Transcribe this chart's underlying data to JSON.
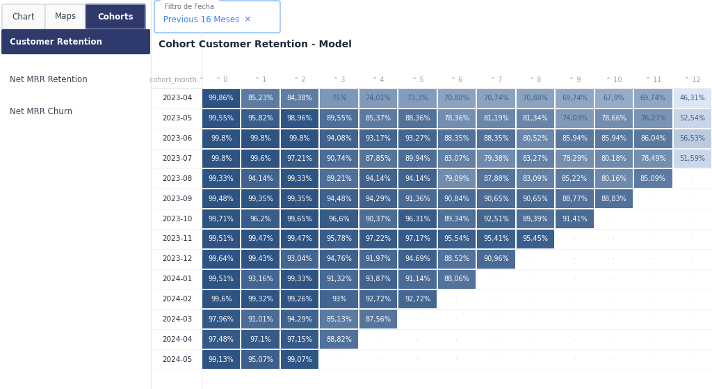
{
  "title": "Cohort Customer Retention - Model",
  "cohort_months": [
    "2023-04",
    "2023-05",
    "2023-06",
    "2023-07",
    "2023-08",
    "2023-09",
    "2023-10",
    "2023-11",
    "2023-12",
    "2024-01",
    "2024-02",
    "2024-03",
    "2024-04",
    "2024-05"
  ],
  "columns": [
    0,
    1,
    2,
    3,
    4,
    5,
    6,
    7,
    8,
    9,
    10,
    11,
    12
  ],
  "values": [
    [
      99.86,
      85.23,
      84.38,
      75.0,
      74.01,
      73.3,
      70.88,
      70.74,
      70.88,
      69.74,
      67.9,
      69.74,
      46.31
    ],
    [
      99.55,
      95.82,
      98.96,
      89.55,
      85.37,
      88.36,
      78.36,
      81.19,
      81.34,
      74.03,
      78.66,
      76.27,
      52.54
    ],
    [
      99.8,
      99.8,
      99.8,
      94.08,
      93.17,
      93.27,
      88.35,
      88.35,
      80.52,
      85.94,
      85.94,
      86.04,
      56.53
    ],
    [
      99.8,
      99.6,
      97.21,
      90.74,
      87.85,
      89.94,
      83.07,
      79.38,
      83.27,
      78.29,
      80.18,
      78.49,
      51.59
    ],
    [
      99.33,
      94.14,
      99.33,
      89.21,
      94.14,
      94.14,
      79.09,
      87.88,
      83.09,
      85.22,
      80.16,
      85.09,
      null
    ],
    [
      99.48,
      99.35,
      99.35,
      94.48,
      94.29,
      91.36,
      90.84,
      90.65,
      90.65,
      88.77,
      88.83,
      null,
      null
    ],
    [
      99.71,
      96.2,
      99.65,
      96.6,
      90.37,
      96.31,
      89.34,
      92.51,
      89.39,
      91.41,
      null,
      null,
      null
    ],
    [
      99.51,
      99.47,
      99.47,
      95.78,
      97.22,
      97.17,
      95.54,
      95.41,
      95.45,
      null,
      null,
      null,
      null
    ],
    [
      99.64,
      99.43,
      93.04,
      94.76,
      91.97,
      94.69,
      88.52,
      90.96,
      null,
      null,
      null,
      null,
      null
    ],
    [
      99.51,
      93.16,
      99.33,
      91.32,
      93.87,
      91.14,
      88.06,
      null,
      null,
      null,
      null,
      null,
      null
    ],
    [
      99.6,
      99.32,
      99.26,
      93.0,
      92.72,
      92.72,
      null,
      null,
      null,
      null,
      null,
      null,
      null
    ],
    [
      97.96,
      91.01,
      94.29,
      85.13,
      87.56,
      null,
      null,
      null,
      null,
      null,
      null,
      null,
      null
    ],
    [
      97.48,
      97.1,
      97.15,
      88.82,
      null,
      null,
      null,
      null,
      null,
      null,
      null,
      null,
      null
    ],
    [
      99.13,
      95.07,
      99.07,
      null,
      null,
      null,
      null,
      null,
      null,
      null,
      null,
      null,
      null
    ]
  ],
  "labels": [
    [
      "99,86%",
      "85,23%",
      "84,38%",
      "75%",
      "74,01%",
      "73,3%",
      "70,88%",
      "70,74%",
      "70,88%",
      "69,74%",
      "67,9%",
      "69,74%",
      "46,31%"
    ],
    [
      "99,55%",
      "95,82%",
      "98,96%",
      "89,55%",
      "85,37%",
      "88,36%",
      "78,36%",
      "81,19%",
      "81,34%",
      "74,03%",
      "78,66%",
      "76,27%",
      "52,54%"
    ],
    [
      "99,8%",
      "99,8%",
      "99,8%",
      "94,08%",
      "93,17%",
      "93,27%",
      "88,35%",
      "88,35%",
      "80,52%",
      "85,94%",
      "85,94%",
      "86,04%",
      "56,53%"
    ],
    [
      "99,8%",
      "99,6%",
      "97,21%",
      "90,74%",
      "87,85%",
      "89,94%",
      "83,07%",
      "79,38%",
      "83,27%",
      "78,29%",
      "80,18%",
      "78,49%",
      "51,59%"
    ],
    [
      "99,33%",
      "94,14%",
      "99,33%",
      "89,21%",
      "94,14%",
      "94,14%",
      "79,09%",
      "87,88%",
      "83,09%",
      "85,22%",
      "80,16%",
      "85,09%",
      "-"
    ],
    [
      "99,48%",
      "99,35%",
      "99,35%",
      "94,48%",
      "94,29%",
      "91,36%",
      "90,84%",
      "90,65%",
      "90,65%",
      "88,77%",
      "88,83%",
      "-",
      "-"
    ],
    [
      "99,71%",
      "96,2%",
      "99,65%",
      "96,6%",
      "90,37%",
      "96,31%",
      "89,34%",
      "92,51%",
      "89,39%",
      "91,41%",
      "-",
      "-",
      "-"
    ],
    [
      "99,51%",
      "99,47%",
      "99,47%",
      "95,78%",
      "97,22%",
      "97,17%",
      "95,54%",
      "95,41%",
      "95,45%",
      "-",
      "-",
      "-",
      "-"
    ],
    [
      "99,64%",
      "99,43%",
      "93,04%",
      "94,76%",
      "91,97%",
      "94,69%",
      "88,52%",
      "90,96%",
      "-",
      "-",
      "-",
      "-",
      "-"
    ],
    [
      "99,51%",
      "93,16%",
      "99,33%",
      "91,32%",
      "93,87%",
      "91,14%",
      "88,06%",
      "-",
      "-",
      "-",
      "-",
      "-",
      "-"
    ],
    [
      "99,6%",
      "99,32%",
      "99,26%",
      "93%",
      "92,72%",
      "92,72%",
      "-",
      "-",
      "-",
      "-",
      "-",
      "-",
      "-"
    ],
    [
      "97,96%",
      "91,01%",
      "94,29%",
      "85,13%",
      "87,56%",
      "-",
      "-",
      "-",
      "-",
      "-",
      "-",
      "-",
      "-"
    ],
    [
      "97,48%",
      "97,1%",
      "97,15%",
      "88,82%",
      "-",
      "-",
      "-",
      "-",
      "-",
      "-",
      "-",
      "-",
      "-"
    ],
    [
      "99,13%",
      "95,07%",
      "99,07%",
      "-",
      "-",
      "-",
      "-",
      "-",
      "-",
      "-",
      "-",
      "-",
      "-"
    ]
  ],
  "color_low": "#dce8f7",
  "color_mid": "#8aadd4",
  "color_high": "#2c5282",
  "color_null_bg": "#ffffff",
  "color_null_dot": "#bbbbbb",
  "background_color": "#ffffff",
  "nav_active_color": "#2d3a6b",
  "nav_active_border": "#8a94b8",
  "filter_border": "#93c5fd",
  "filter_label_color": "#6b7280",
  "filter_chip_color": "#3b82f6",
  "sidebar_text_dark": "#1f2937",
  "sidebar_text_inactive": "#374151",
  "text_dark": "#1f2937",
  "text_header": "#9ca3af",
  "cell_text_light": "#4a6080",
  "cell_text_white": "#ffffff",
  "title_fontsize": 10,
  "header_fontsize": 7,
  "cell_fontsize": 7,
  "row_label_fontsize": 7.5,
  "vmin": 46.0,
  "vmax": 100.0,
  "brightness_threshold": 0.55
}
